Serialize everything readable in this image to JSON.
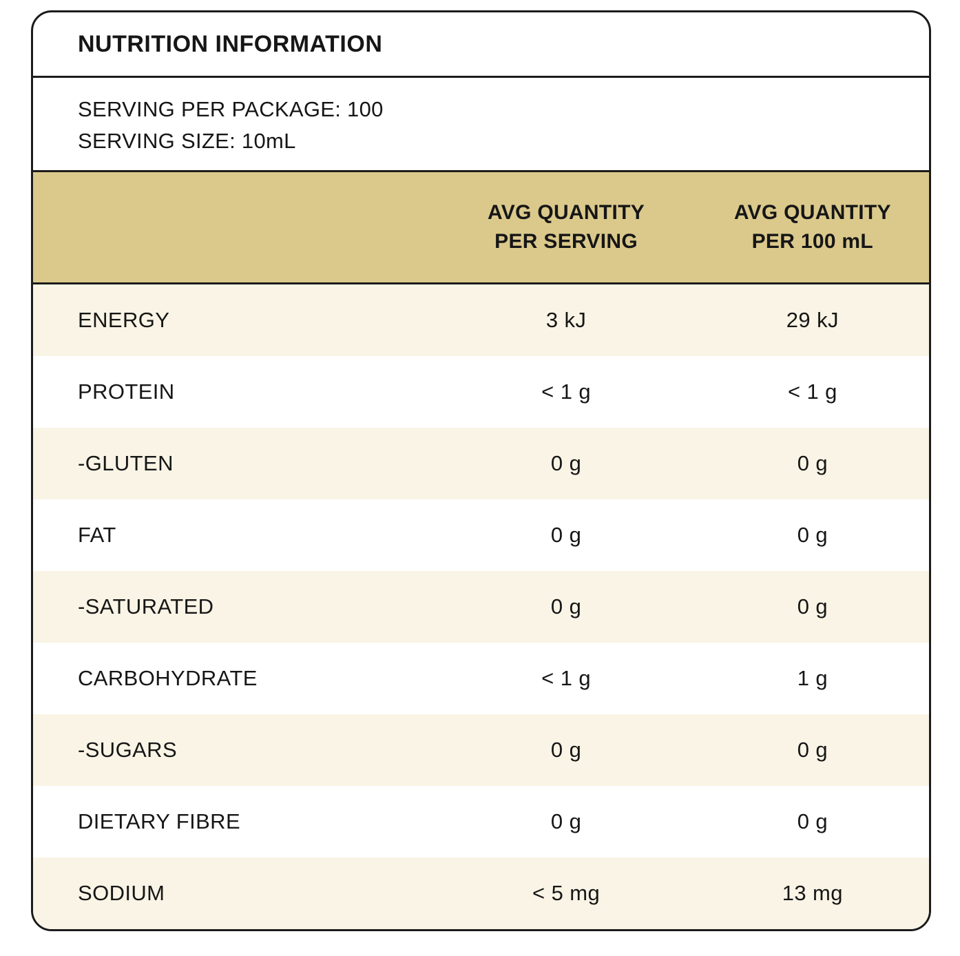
{
  "panel": {
    "title": "NUTRITION INFORMATION",
    "serving_per_package": "SERVING PER PACKAGE: 100",
    "serving_size": "SERVING SIZE: 10mL",
    "col_headers": [
      {
        "line1": "AVG QUANTITY",
        "line2": "PER SERVING"
      },
      {
        "line1": "AVG QUANTITY",
        "line2": "PER 100 mL"
      }
    ],
    "rows": [
      {
        "label": "ENERGY",
        "per_serving": "3 kJ",
        "per_100ml": "29 kJ"
      },
      {
        "label": "PROTEIN",
        "per_serving": "< 1 g",
        "per_100ml": "< 1 g"
      },
      {
        "label": "-GLUTEN",
        "per_serving": "0 g",
        "per_100ml": "0 g"
      },
      {
        "label": "FAT",
        "per_serving": "0 g",
        "per_100ml": "0 g"
      },
      {
        "label": "-SATURATED",
        "per_serving": "0 g",
        "per_100ml": "0 g"
      },
      {
        "label": "CARBOHYDRATE",
        "per_serving": "< 1 g",
        "per_100ml": "1 g"
      },
      {
        "label": "-SUGARS",
        "per_serving": "0 g",
        "per_100ml": "0 g"
      },
      {
        "label": "DIETARY FIBRE",
        "per_serving": "0 g",
        "per_100ml": "0 g"
      },
      {
        "label": "SODIUM",
        "per_serving": "< 5 mg",
        "per_100ml": "13 mg"
      }
    ],
    "colors": {
      "header_band": "#dbc98c",
      "row_alternate": "#f9f4e5",
      "border": "#1b1b1b"
    }
  }
}
